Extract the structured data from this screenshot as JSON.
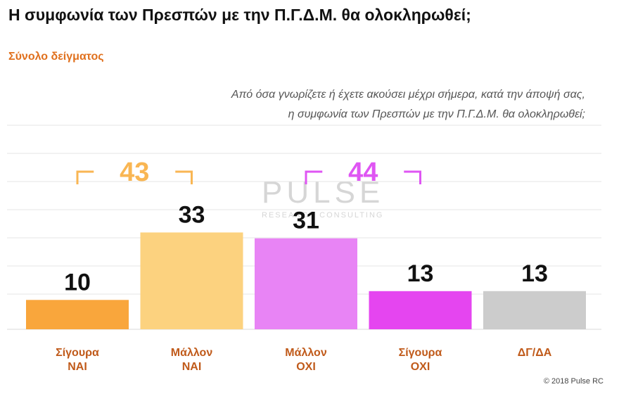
{
  "header": {
    "title": "Η συμφωνία των Πρεσπών με την Π.Γ.Δ.Μ. θα ολοκληρωθεί;",
    "subtitle": "Σύνολο δείγματος"
  },
  "question": {
    "line1": "Από όσα γνωρίζετε ή έχετε ακούσει μέχρι σήμερα, κατά την άποψή σας,",
    "line2": "η συμφωνία των Πρεσπών με την Π.Γ.Δ.Μ. θα ολοκληρωθεί;"
  },
  "watermark": {
    "word": "PULSE",
    "sub": "RESEARCH CONSULTING"
  },
  "footer": {
    "copyright": "© 2018 Pulse RC"
  },
  "chart_data": {
    "type": "bar",
    "title": "Η συμφωνία των Πρεσπών με την Π.Γ.Δ.Μ. θα ολοκληρωθεί;",
    "subtitle": "Σύνολο δείγματος",
    "categories": [
      [
        "Σίγουρα",
        "ΝΑΙ"
      ],
      [
        "Μάλλον",
        "ΝΑΙ"
      ],
      [
        "Μάλλον",
        "ΟΧΙ"
      ],
      [
        "Σίγουρα",
        "ΟΧΙ"
      ],
      [
        "ΔΓ/ΔΑ"
      ]
    ],
    "values": [
      10,
      33,
      31,
      13,
      13
    ],
    "colors": [
      "#f9a63c",
      "#fcd27f",
      "#e884f5",
      "#e545f0",
      "#cccccc"
    ],
    "ylim": [
      0,
      50
    ],
    "grid": true,
    "groups": [
      {
        "label": "43",
        "from": 0,
        "to": 1,
        "color": "#f9b653"
      },
      {
        "label": "44",
        "from": 2,
        "to": 3,
        "color": "#df55f3"
      }
    ]
  }
}
